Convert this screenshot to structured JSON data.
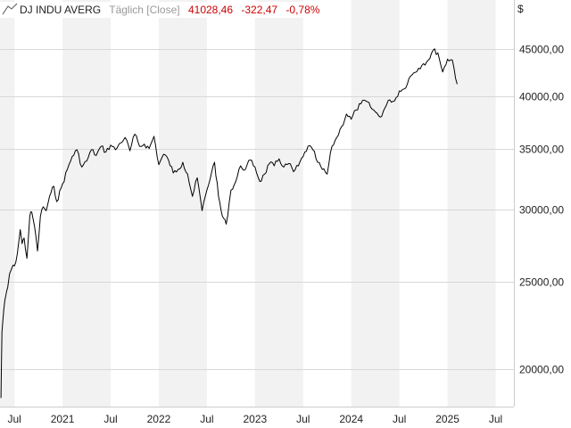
{
  "chart_data": {
    "type": "line",
    "title": "DJ INDU AVERG",
    "interval": "Täglich [Close]",
    "last_value": "41028,46",
    "change": "-322,47",
    "change_pct": "-0,78%",
    "currency": "$",
    "y_scale": "log",
    "ylim": [
      18200,
      51000
    ],
    "xlim": [
      2020.35,
      2025.69
    ],
    "y_ticks": [
      {
        "value": 20000,
        "label": "20000,00"
      },
      {
        "value": 25000,
        "label": "25000,00"
      },
      {
        "value": 30000,
        "label": "30000,00"
      },
      {
        "value": 35000,
        "label": "35000,00"
      },
      {
        "value": 40000,
        "label": "40000,00"
      },
      {
        "value": 45000,
        "label": "45000,00"
      }
    ],
    "x_ticks": [
      {
        "value": 2020.5,
        "label": "Jul"
      },
      {
        "value": 2021.0,
        "label": "2021"
      },
      {
        "value": 2021.5,
        "label": "Jul"
      },
      {
        "value": 2022.0,
        "label": "2022"
      },
      {
        "value": 2022.5,
        "label": "Jul"
      },
      {
        "value": 2023.0,
        "label": "2023"
      },
      {
        "value": 2023.5,
        "label": "Jul"
      },
      {
        "value": 2024.0,
        "label": "2024"
      },
      {
        "value": 2024.5,
        "label": "Jul"
      },
      {
        "value": 2025.0,
        "label": "2025"
      },
      {
        "value": 2025.5,
        "label": "Jul"
      }
    ],
    "series": [
      {
        "name": "DJ INDU AVERG",
        "x": [
          2020.36,
          2020.37,
          2020.39,
          2020.41,
          2020.43,
          2020.45,
          2020.47,
          2020.5,
          2020.53,
          2020.56,
          2020.58,
          2020.6,
          2020.63,
          2020.66,
          2020.68,
          2020.71,
          2020.74,
          2020.77,
          2020.8,
          2020.83,
          2020.85,
          2020.88,
          2020.91,
          2020.94,
          2021.0,
          2021.05,
          2021.1,
          2021.15,
          2021.2,
          2021.25,
          2021.3,
          2021.35,
          2021.4,
          2021.45,
          2021.5,
          2021.55,
          2021.6,
          2021.65,
          2021.7,
          2021.75,
          2021.8,
          2021.85,
          2021.9,
          2021.95,
          2022.0,
          2022.05,
          2022.1,
          2022.15,
          2022.2,
          2022.25,
          2022.3,
          2022.35,
          2022.4,
          2022.45,
          2022.5,
          2022.55,
          2022.58,
          2022.62,
          2022.66,
          2022.7,
          2022.75,
          2022.8,
          2022.85,
          2022.9,
          2022.95,
          2023.0,
          2023.05,
          2023.1,
          2023.15,
          2023.2,
          2023.25,
          2023.3,
          2023.35,
          2023.4,
          2023.45,
          2023.5,
          2023.55,
          2023.6,
          2023.65,
          2023.7,
          2023.75,
          2023.8,
          2023.85,
          2023.9,
          2023.95,
          2024.0,
          2024.05,
          2024.1,
          2024.15,
          2024.2,
          2024.25,
          2024.3,
          2024.35,
          2024.4,
          2024.45,
          2024.5,
          2024.55,
          2024.6,
          2024.65,
          2024.7,
          2024.75,
          2024.8,
          2024.85,
          2024.9,
          2024.95,
          2025.0,
          2025.05,
          2025.1
        ],
        "values": [
          18600,
          22000,
          23300,
          24100,
          24600,
          25500,
          25800,
          26000,
          26800,
          28500,
          27500,
          27900,
          26500,
          29500,
          29800,
          28700,
          27000,
          29500,
          30200,
          29900,
          30500,
          31300,
          31800,
          30600,
          32000,
          33200,
          34300,
          34900,
          33400,
          33900,
          34900,
          34400,
          35200,
          34700,
          35300,
          34900,
          35500,
          36000,
          34800,
          36300,
          35200,
          35400,
          35000,
          36100,
          33600,
          34500,
          34000,
          32900,
          33200,
          33800,
          32800,
          31000,
          32500,
          29900,
          31500,
          33000,
          33800,
          31000,
          29500,
          28900,
          31500,
          32200,
          33500,
          33200,
          34000,
          33400,
          32200,
          32800,
          33700,
          33500,
          34100,
          33400,
          33700,
          33000,
          33500,
          34300,
          35200,
          34900,
          33800,
          33200,
          32800,
          35200,
          36000,
          37000,
          38200,
          37700,
          38600,
          39200,
          39500,
          38900,
          38400,
          37900,
          38800,
          39600,
          39500,
          40500,
          40700,
          41800,
          42400,
          42900,
          43400,
          43800,
          44900,
          44600,
          42500,
          43900,
          43800,
          41200
        ],
        "color": "#000000"
      }
    ]
  }
}
